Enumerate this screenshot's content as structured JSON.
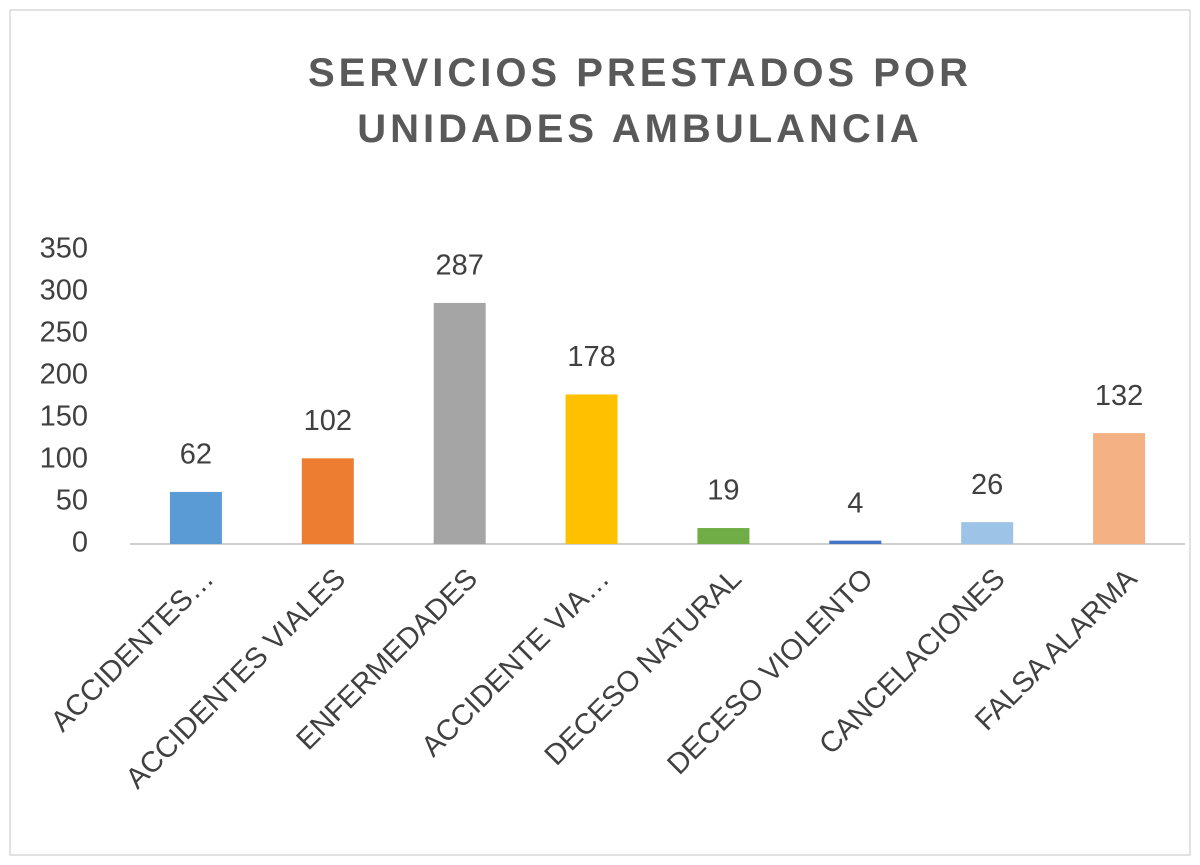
{
  "chart_data": {
    "type": "bar",
    "title": "SERVICIOS PRESTADOS POR UNIDADES AMBULANCIA",
    "categories": [
      "ACCIDENTES…",
      "ACCIDENTES VIALES",
      "ENFERMEDADES",
      "ACCIDENTE VIA…",
      "DECESO NATURAL",
      "DECESO VIOLENTO",
      "CANCELACIONES",
      "FALSA ALARMA"
    ],
    "values": [
      62,
      102,
      287,
      178,
      19,
      4,
      26,
      132
    ],
    "colors": [
      "#5b9bd5",
      "#ed7d31",
      "#a5a5a5",
      "#ffc000",
      "#70ad47",
      "#4472c4",
      "#9dc3e6",
      "#f4b183"
    ],
    "ylim": [
      0,
      350
    ],
    "yticks": [
      0,
      50,
      100,
      150,
      200,
      250,
      300,
      350
    ],
    "grid": false
  }
}
